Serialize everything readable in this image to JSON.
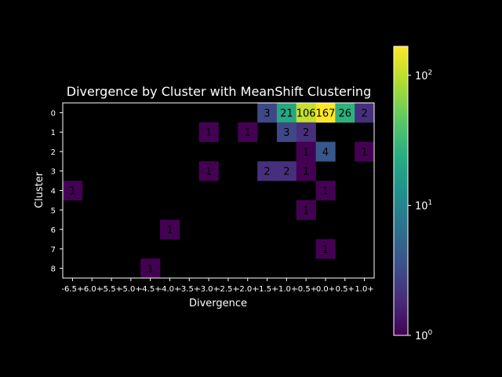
{
  "chart_data": {
    "type": "heatmap",
    "title": "Divergence by Cluster with MeanShift Clustering",
    "xlabel": "Divergence",
    "ylabel": "Cluster",
    "x_tick_labels": [
      "-6.5+",
      "-6.0+",
      "-5.5+",
      "-5.0+",
      "-4.5+",
      "-4.0+",
      "-3.5+",
      "-3.0+",
      "-2.5+",
      "-2.0+",
      "-1.5+",
      "-1.0+",
      "-0.5+",
      "0.0+",
      "0.5+",
      "1.0+"
    ],
    "y_tick_labels": [
      "0",
      "1",
      "2",
      "3",
      "4",
      "5",
      "6",
      "7",
      "8"
    ],
    "color_scale": "log",
    "colormap": "viridis",
    "color_range": [
      1,
      167
    ],
    "colorbar_ticks": [
      {
        "value": 1,
        "base": "10",
        "exp": "0"
      },
      {
        "value": 10,
        "base": "10",
        "exp": "1"
      },
      {
        "value": 100,
        "base": "10",
        "exp": "2"
      }
    ],
    "cells": [
      {
        "cluster": "0",
        "divergence": "-1.5+",
        "count": 3
      },
      {
        "cluster": "0",
        "divergence": "-1.0+",
        "count": 21
      },
      {
        "cluster": "0",
        "divergence": "-0.5+",
        "count": 106
      },
      {
        "cluster": "0",
        "divergence": "0.0+",
        "count": 167
      },
      {
        "cluster": "0",
        "divergence": "0.5+",
        "count": 26
      },
      {
        "cluster": "0",
        "divergence": "1.0+",
        "count": 2
      },
      {
        "cluster": "1",
        "divergence": "-3.0+",
        "count": 1
      },
      {
        "cluster": "1",
        "divergence": "-2.0+",
        "count": 1
      },
      {
        "cluster": "1",
        "divergence": "-1.0+",
        "count": 3
      },
      {
        "cluster": "1",
        "divergence": "-0.5+",
        "count": 2
      },
      {
        "cluster": "2",
        "divergence": "-0.5+",
        "count": 1
      },
      {
        "cluster": "2",
        "divergence": "0.0+",
        "count": 4
      },
      {
        "cluster": "2",
        "divergence": "1.0+",
        "count": 1
      },
      {
        "cluster": "3",
        "divergence": "-3.0+",
        "count": 1
      },
      {
        "cluster": "3",
        "divergence": "-1.5+",
        "count": 2
      },
      {
        "cluster": "3",
        "divergence": "-1.0+",
        "count": 2
      },
      {
        "cluster": "3",
        "divergence": "-0.5+",
        "count": 1
      },
      {
        "cluster": "4",
        "divergence": "-6.5+",
        "count": 1
      },
      {
        "cluster": "4",
        "divergence": "0.0+",
        "count": 1
      },
      {
        "cluster": "5",
        "divergence": "-0.5+",
        "count": 1
      },
      {
        "cluster": "6",
        "divergence": "-4.0+",
        "count": 1
      },
      {
        "cluster": "7",
        "divergence": "0.0+",
        "count": 1
      },
      {
        "cluster": "8",
        "divergence": "-4.5+",
        "count": 1
      }
    ],
    "grid": false
  }
}
